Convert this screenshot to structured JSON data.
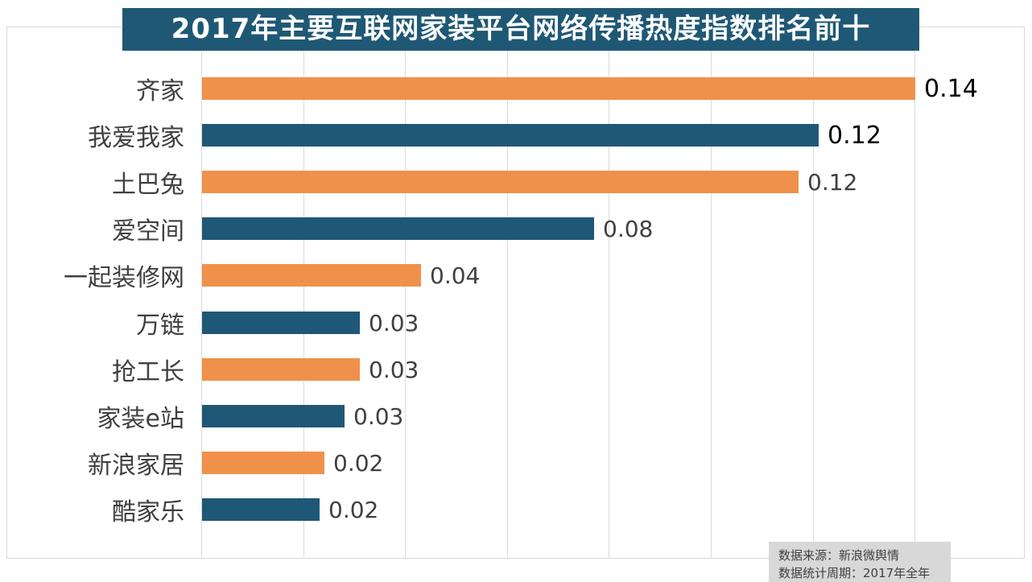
{
  "header": {
    "title": "2017年主要互联网家装平台网络传播热度指数排名前十"
  },
  "footer": {
    "line1": "数据来源：新浪微舆情",
    "line2": "数据统计周期：2017年全年"
  },
  "colors": {
    "title_background": "#1F5874",
    "bar_orange": "#F0914B",
    "bar_blue": "#1F5876",
    "gridline": "#DBDBDB",
    "category_label_text": "#404040",
    "value_label_text": "#404040",
    "value_label_emphasized_text": "#000000",
    "footer_background": "#D8D8D8",
    "footer_text": "#3F3F3F"
  },
  "chart_data": {
    "type": "bar",
    "orientation": "horizontal",
    "title": "2017年主要互联网家装平台网络传播热度指数排名前十",
    "categories": [
      "齐家",
      "我爱我家",
      "土巴兔",
      "爱空间",
      "一起装修网",
      "万链",
      "抢工长",
      "家装e站",
      "新浪家居",
      "酷家乐"
    ],
    "values": [
      0.14,
      0.12,
      0.12,
      0.08,
      0.04,
      0.03,
      0.03,
      0.03,
      0.02,
      0.02
    ],
    "value_labels": [
      "0.14",
      "0.12",
      "0.12",
      "0.08",
      "0.04",
      "0.03",
      "0.03",
      "0.03",
      "0.02",
      "0.02"
    ],
    "values_precise_estimated": [
      0.14,
      0.121,
      0.117,
      0.077,
      0.043,
      0.031,
      0.031,
      0.028,
      0.024,
      0.023
    ],
    "bar_colors": [
      "orange",
      "blue",
      "orange",
      "blue",
      "orange",
      "blue",
      "orange",
      "blue",
      "orange",
      "blue"
    ],
    "value_label_emphasized": [
      true,
      true,
      false,
      false,
      false,
      false,
      false,
      false,
      false,
      false
    ],
    "xlabel": "",
    "ylabel": "",
    "xlim": [
      0,
      0.16
    ],
    "gridline_step": 0.02,
    "grid": "vertical-only",
    "x_tick_labels_visible": false,
    "legend": "none",
    "data_labels": "outside-end"
  },
  "layout_note": ""
}
